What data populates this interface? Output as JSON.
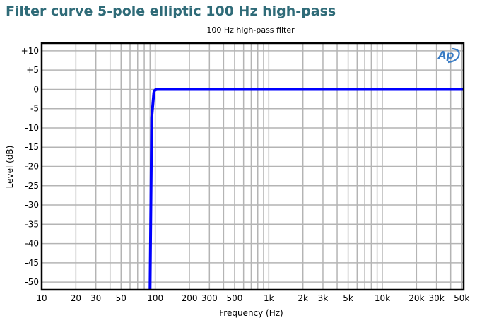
{
  "header": {
    "title": "Filter curve 5-pole elliptic 100 Hz high-pass",
    "subtitle": "100 Hz high-pass filter"
  },
  "axes": {
    "xlabel": "Frequency (Hz)",
    "ylabel": "Level (dB)"
  },
  "logo": {
    "icon": "ap-logo-icon",
    "text": "Ap"
  },
  "colors": {
    "title": "#2f6b78",
    "curve": "#0000ff",
    "grid": "#b4b4b4",
    "frame": "#000000",
    "logo": "#3a7cc4"
  },
  "chart_data": {
    "type": "line",
    "title": "100 Hz high-pass filter",
    "xlabel": "Frequency (Hz)",
    "ylabel": "Level (dB)",
    "xscale": "log",
    "xlim": [
      10,
      52000
    ],
    "ylim": [
      -52,
      12
    ],
    "grid": true,
    "legend": null,
    "x_tick_labels": [
      "10",
      "20",
      "30",
      "50",
      "100",
      "200",
      "300",
      "500",
      "1k",
      "2k",
      "3k",
      "5k",
      "10k",
      "20k",
      "30k",
      "50k"
    ],
    "x_ticks": [
      10,
      20,
      30,
      50,
      100,
      200,
      300,
      500,
      1000,
      2000,
      3000,
      5000,
      10000,
      20000,
      30000,
      50000
    ],
    "y_tick_labels": [
      "+10",
      "+5",
      "0",
      "-5",
      "-10",
      "-15",
      "-20",
      "-25",
      "-30",
      "-35",
      "-40",
      "-45",
      "-50"
    ],
    "y_ticks": [
      10,
      5,
      0,
      -5,
      -10,
      -15,
      -20,
      -25,
      -30,
      -35,
      -40,
      -45,
      -50
    ],
    "series": [
      {
        "name": "5-pole elliptic 100 Hz high-pass",
        "color": "#0000ff",
        "x": [
          90,
          92,
          94,
          96,
          98,
          100,
          200,
          1000,
          10000,
          52000
        ],
        "y": [
          -52,
          -40,
          -25,
          -10,
          -2,
          0,
          0,
          0,
          0,
          0
        ]
      }
    ]
  }
}
